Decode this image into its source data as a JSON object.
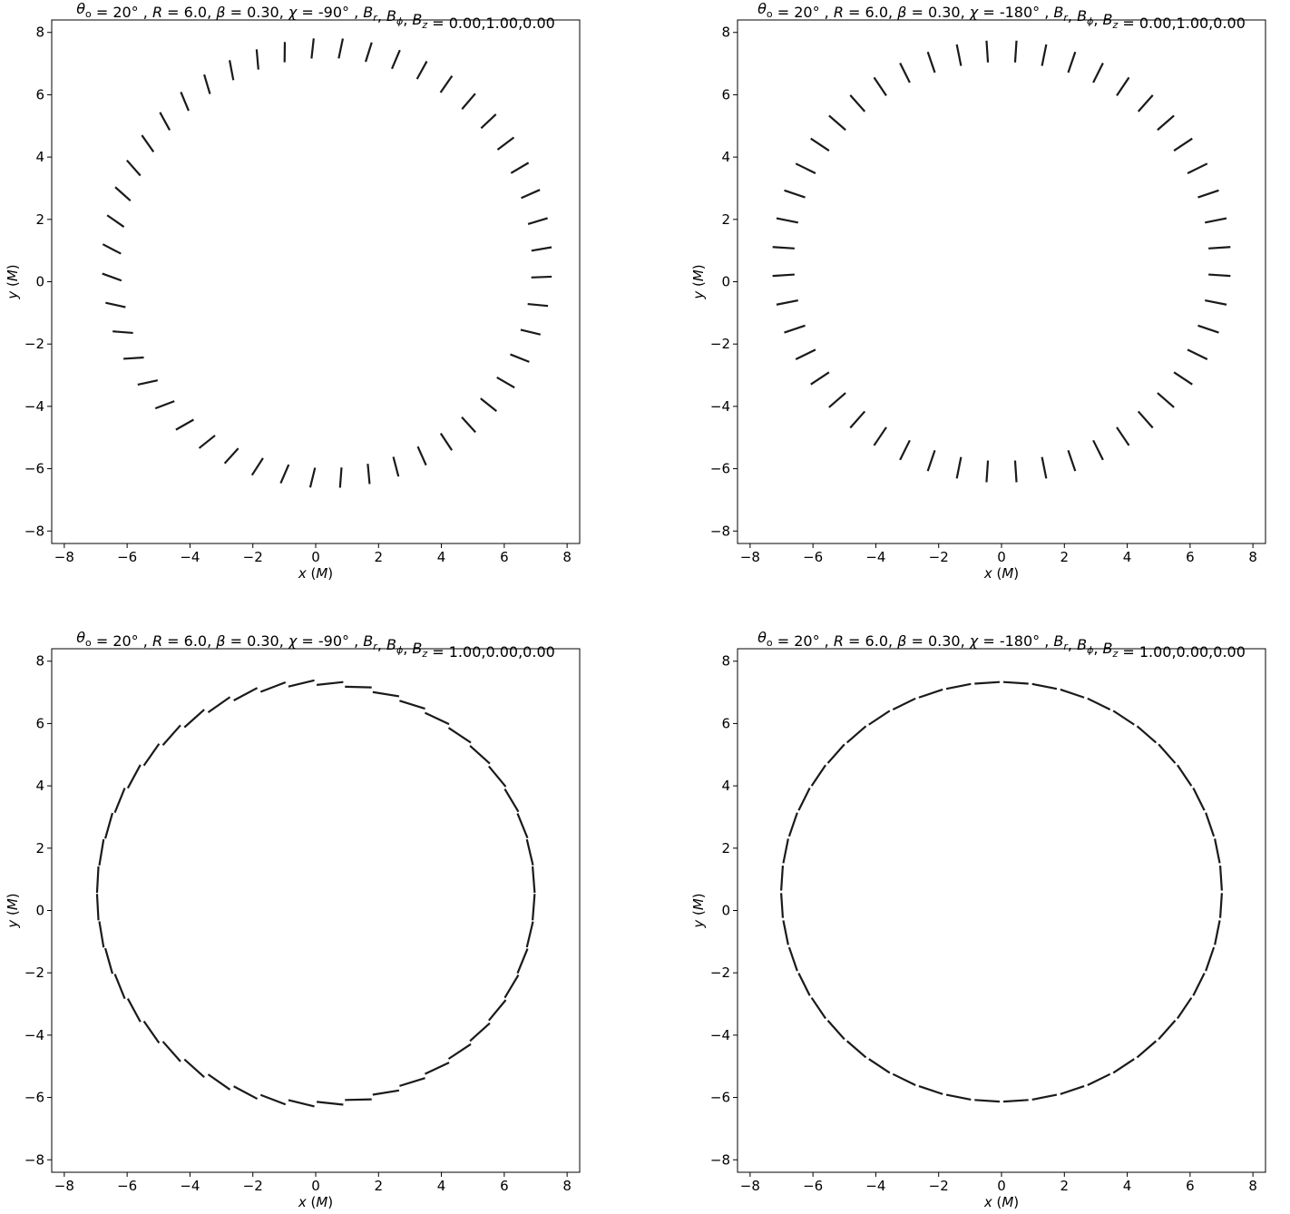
{
  "chart_data": [
    {
      "type": "scatter",
      "title": "θₒ = 20°, R = 6.0, β = 0.30, χ = -90°, Bᵣ, Bϕ, B_z = 0.00,1.00,0.00",
      "title_parts": {
        "theta": "20",
        "R": "6.0",
        "beta": "0.30",
        "chi": "-90",
        "B": "0.00,1.00,0.00"
      },
      "xlabel": "x (M)",
      "ylabel": "y (M)",
      "xlim": [
        -8.4,
        8.4
      ],
      "ylim": [
        -8.4,
        8.4
      ],
      "xticks": [
        -8,
        -6,
        -4,
        -2,
        0,
        2,
        4,
        6,
        8
      ],
      "yticks": [
        -8,
        -6,
        -4,
        -2,
        0,
        2,
        4,
        6,
        8
      ],
      "ring": {
        "cx": 0.35,
        "cy": 0.6,
        "rx": 6.85,
        "ry": 6.9
      },
      "segment_length": 0.65,
      "orientation": "radial_tilted",
      "tilt_deg": 15,
      "n_vectors": 48
    },
    {
      "type": "scatter",
      "title": "θₒ = 20°, R = 6.0, β = 0.30, χ = -180°, Bᵣ, Bϕ, B_z = 0.00,1.00,0.00",
      "title_parts": {
        "theta": "20",
        "R": "6.0",
        "beta": "0.30",
        "chi": "-180",
        "B": "0.00,1.00,0.00"
      },
      "xlabel": "x (M)",
      "ylabel": "y (M)",
      "xlim": [
        -8.4,
        8.4
      ],
      "ylim": [
        -8.4,
        8.4
      ],
      "xticks": [
        -8,
        -6,
        -4,
        -2,
        0,
        2,
        4,
        6,
        8
      ],
      "yticks": [
        -8,
        -6,
        -4,
        -2,
        0,
        2,
        4,
        6,
        8
      ],
      "ring": {
        "cx": 0.0,
        "cy": 0.65,
        "rx": 6.95,
        "ry": 6.75
      },
      "segment_length": 0.7,
      "orientation": "radial",
      "tilt_deg": 0,
      "n_vectors": 48
    },
    {
      "type": "scatter",
      "title": "θₒ = 20°, R = 6.0, β = 0.30, χ = -90°, Bᵣ, Bϕ, B_z = 1.00,0.00,0.00",
      "title_parts": {
        "theta": "20",
        "R": "6.0",
        "beta": "0.30",
        "chi": "-90",
        "B": "1.00,0.00,0.00"
      },
      "xlabel": "x (M)",
      "ylabel": "y (M)",
      "xlim": [
        -8.4,
        8.4
      ],
      "ylim": [
        -8.4,
        8.4
      ],
      "xticks": [
        -8,
        -6,
        -4,
        -2,
        0,
        2,
        4,
        6,
        8
      ],
      "yticks": [
        -8,
        -6,
        -4,
        -2,
        0,
        2,
        4,
        6,
        8
      ],
      "ring": {
        "cx": 0.0,
        "cy": 0.55,
        "rx": 6.95,
        "ry": 6.75
      },
      "segment_length": 0.85,
      "orientation": "tangential",
      "tilt_deg": 10,
      "n_vectors": 48
    },
    {
      "type": "scatter",
      "title": "θₒ = 20°, R = 6.0, β = 0.30, χ = -180°, Bᵣ, Bϕ, B_z = 1.00,0.00,0.00",
      "title_parts": {
        "theta": "20",
        "R": "6.0",
        "beta": "0.30",
        "chi": "-180",
        "B": "1.00,0.00,0.00"
      },
      "xlabel": "x (M)",
      "ylabel": "y (M)",
      "xlim": [
        -8.4,
        8.4
      ],
      "ylim": [
        -8.4,
        8.4
      ],
      "xticks": [
        -8,
        -6,
        -4,
        -2,
        0,
        2,
        4,
        6,
        8
      ],
      "yticks": [
        -8,
        -6,
        -4,
        -2,
        0,
        2,
        4,
        6,
        8
      ],
      "ring": {
        "cx": 0.0,
        "cy": 0.6,
        "rx": 7.0,
        "ry": 6.72
      },
      "segment_length": 0.8,
      "orientation": "tangential",
      "tilt_deg": 0,
      "n_vectors": 48
    }
  ]
}
